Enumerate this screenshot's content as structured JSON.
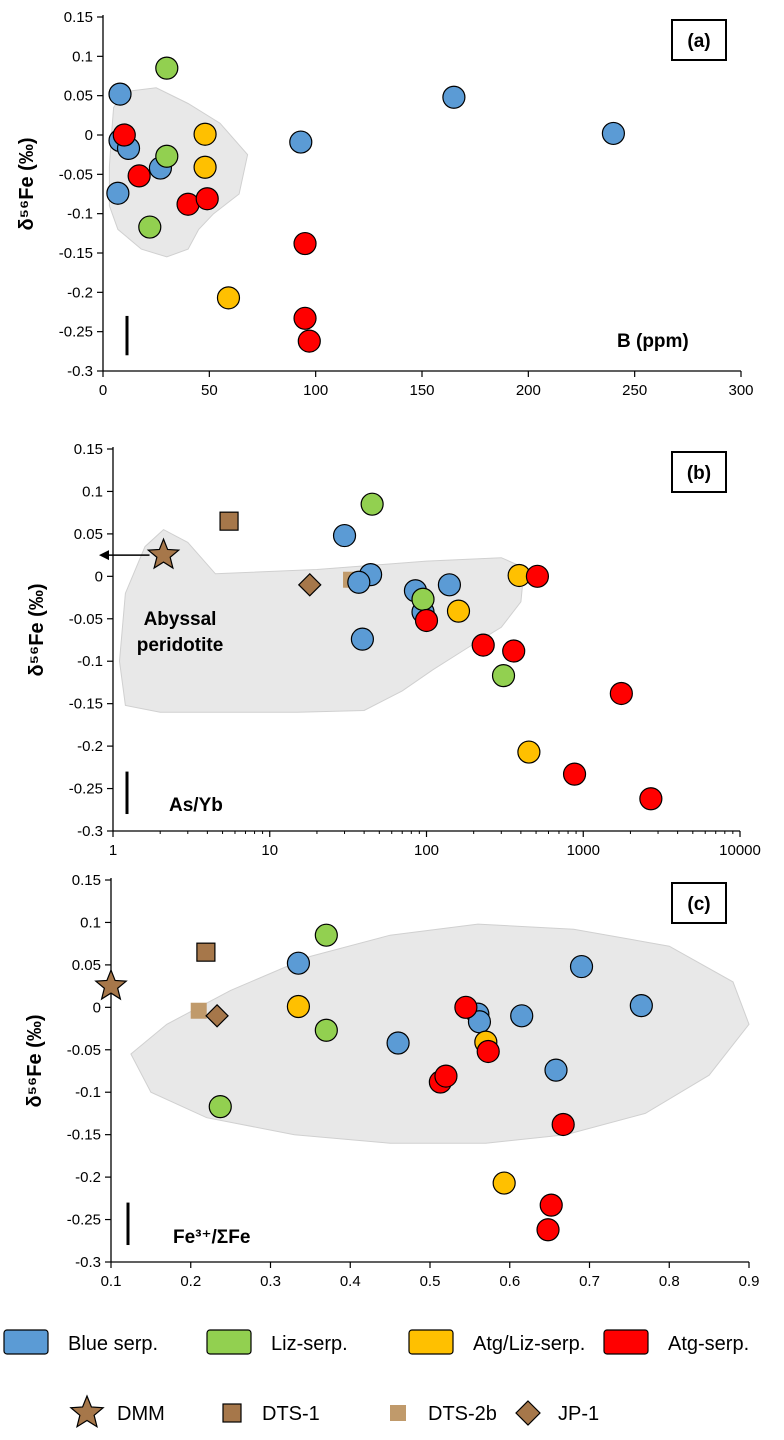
{
  "colors": {
    "blue": "#5b9bd5",
    "green": "#92d050",
    "yellow": "#ffc000",
    "red": "#ff0000",
    "brown": "#a6774a",
    "lightbrown": "#c09a6b",
    "field": "#e8e8e8"
  },
  "legend": {
    "items": [
      {
        "label": "Blue serp.",
        "color": "#5b9bd5",
        "marker": "rect"
      },
      {
        "label": "Liz-serp.",
        "color": "#92d050",
        "marker": "rect"
      },
      {
        "label": "Atg/Liz-serp.",
        "color": "#ffc000",
        "marker": "rect"
      },
      {
        "label": "Atg-serp.",
        "color": "#ff0000",
        "marker": "rect"
      }
    ],
    "refs": [
      {
        "label": "DMM",
        "marker": "star"
      },
      {
        "label": "DTS-1",
        "marker": "square"
      },
      {
        "label": "DTS-2b",
        "marker": "small-square"
      },
      {
        "label": "JP-1",
        "marker": "diamond"
      }
    ]
  },
  "chart_data": [
    {
      "type": "scatter",
      "panel": "(a)",
      "ylabel": "δ⁵⁶Fe (‰)",
      "xlabel": "B (ppm)",
      "xscale": "linear",
      "xlim": [
        0,
        300
      ],
      "ylim": [
        -0.3,
        0.15
      ],
      "xticks": [
        0,
        50,
        100,
        150,
        200,
        250,
        300
      ],
      "yticks": [
        0.15,
        0.1,
        0.05,
        0,
        -0.05,
        -0.1,
        -0.15,
        -0.2,
        -0.25,
        -0.3
      ],
      "xtick_labels": [
        "0",
        "50",
        "100",
        "150",
        "200",
        "250",
        "300"
      ],
      "ytick_labels": [
        "0.15",
        "0.1",
        "0.05",
        "0",
        "-0.05",
        "-0.1",
        "-0.15",
        "-0.2",
        "-0.25",
        "-0.3"
      ],
      "field": {
        "label": "",
        "outline": [
          [
            5,
            0.035
          ],
          [
            10,
            0.055
          ],
          [
            25,
            0.06
          ],
          [
            40,
            0.04
          ],
          [
            55,
            0.015
          ],
          [
            68,
            -0.025
          ],
          [
            64,
            -0.075
          ],
          [
            52,
            -0.1
          ],
          [
            45,
            -0.12
          ],
          [
            40,
            -0.145
          ],
          [
            30,
            -0.155
          ],
          [
            18,
            -0.145
          ],
          [
            7,
            -0.12
          ],
          [
            3,
            -0.09
          ],
          [
            3,
            -0.04
          ],
          [
            4,
            0.0
          ]
        ]
      },
      "series": [
        {
          "group": "blue",
          "points": [
            [
              8,
              0.052
            ],
            [
              8,
              -0.007
            ],
            [
              12,
              -0.017
            ],
            [
              7,
              -0.074
            ],
            [
              27,
              -0.042
            ],
            [
              93,
              -0.009
            ],
            [
              165,
              0.048
            ],
            [
              240,
              0.002
            ]
          ]
        },
        {
          "group": "green",
          "points": [
            [
              30,
              0.085
            ],
            [
              30,
              -0.027
            ],
            [
              22,
              -0.117
            ]
          ]
        },
        {
          "group": "yellow",
          "points": [
            [
              48,
              0.001
            ],
            [
              48,
              -0.041
            ],
            [
              59,
              -0.207
            ]
          ]
        },
        {
          "group": "red",
          "points": [
            [
              10,
              0.0
            ],
            [
              17,
              -0.052
            ],
            [
              40,
              -0.088
            ],
            [
              49,
              -0.081
            ],
            [
              95,
              -0.138
            ],
            [
              95,
              -0.233
            ],
            [
              97,
              -0.262
            ]
          ]
        }
      ],
      "refs": [],
      "error_bar_length": 0.05
    },
    {
      "type": "scatter",
      "panel": "(b)",
      "ylabel": "δ⁵⁶Fe (‰)",
      "xlabel": "As/Yb",
      "xscale": "log",
      "xlim": [
        1,
        10000
      ],
      "ylim": [
        -0.3,
        0.15
      ],
      "xticks": [
        1,
        10,
        100,
        1000,
        10000
      ],
      "yticks": [
        0.15,
        0.1,
        0.05,
        0,
        -0.05,
        -0.1,
        -0.15,
        -0.2,
        -0.25,
        -0.3
      ],
      "xtick_labels": [
        "1",
        "10",
        "100",
        "1000",
        "10000"
      ],
      "ytick_labels": [
        "0.15",
        "0.1",
        "0.05",
        "0",
        "-0.05",
        "-0.1",
        "-0.15",
        "-0.2",
        "-0.25",
        "-0.3"
      ],
      "field": {
        "label": "Abyssal peridotite",
        "outline": [
          [
            1.2,
            -0.02
          ],
          [
            1.6,
            0.035
          ],
          [
            2.1,
            0.055
          ],
          [
            3,
            0.04
          ],
          [
            4.5,
            0.003
          ],
          [
            20,
            0.008
          ],
          [
            100,
            0.018
          ],
          [
            300,
            0.022
          ],
          [
            420,
            0.01
          ],
          [
            400,
            -0.03
          ],
          [
            300,
            -0.06
          ],
          [
            180,
            -0.085
          ],
          [
            110,
            -0.11
          ],
          [
            70,
            -0.135
          ],
          [
            40,
            -0.158
          ],
          [
            15,
            -0.16
          ],
          [
            5,
            -0.16
          ],
          [
            2,
            -0.16
          ],
          [
            1.2,
            -0.152
          ],
          [
            1.1,
            -0.1
          ]
        ]
      },
      "series": [
        {
          "group": "blue",
          "points": [
            [
              30,
              0.048
            ],
            [
              44,
              0.002
            ],
            [
              37,
              -0.007
            ],
            [
              85,
              -0.017
            ],
            [
              140,
              -0.01
            ],
            [
              95,
              -0.042
            ],
            [
              39,
              -0.074
            ]
          ]
        },
        {
          "group": "green",
          "points": [
            [
              45,
              0.085
            ],
            [
              95,
              -0.027
            ],
            [
              310,
              -0.117
            ]
          ]
        },
        {
          "group": "yellow",
          "points": [
            [
              390,
              0.001
            ],
            [
              160,
              -0.041
            ],
            [
              450,
              -0.207
            ]
          ]
        },
        {
          "group": "red",
          "points": [
            [
              510,
              0.0
            ],
            [
              100,
              -0.052
            ],
            [
              230,
              -0.081
            ],
            [
              360,
              -0.088
            ],
            [
              1750,
              -0.138
            ],
            [
              880,
              -0.233
            ],
            [
              2700,
              -0.262
            ]
          ]
        }
      ],
      "refs": [
        {
          "name": "DMM",
          "marker": "star",
          "point": [
            2.1,
            0.025
          ]
        },
        {
          "name": "DTS-1",
          "marker": "square",
          "point": [
            5.5,
            0.065
          ]
        },
        {
          "name": "DTS-2b",
          "marker": "small-square",
          "point": [
            33,
            -0.004
          ]
        },
        {
          "name": "JP-1",
          "marker": "diamond",
          "point": [
            18,
            -0.01
          ]
        }
      ],
      "arrow": {
        "from": [
          2.1,
          0.025
        ],
        "to": [
          1.05,
          0.025
        ]
      },
      "error_bar_length": 0.05
    },
    {
      "type": "scatter",
      "panel": "(c)",
      "ylabel": "δ⁵⁶Fe (‰)",
      "xlabel": "Fe³⁺/ΣFe",
      "xscale": "linear",
      "xlim": [
        0.1,
        0.9
      ],
      "ylim": [
        -0.3,
        0.15
      ],
      "xticks": [
        0.1,
        0.2,
        0.3,
        0.4,
        0.5,
        0.6,
        0.7,
        0.8,
        0.9
      ],
      "yticks": [
        0.15,
        0.1,
        0.05,
        0,
        -0.05,
        -0.1,
        -0.15,
        -0.2,
        -0.25,
        -0.3
      ],
      "xtick_labels": [
        "0.1",
        "0.2",
        "0.3",
        "0.4",
        "0.5",
        "0.6",
        "0.7",
        "0.8",
        "0.9"
      ],
      "ytick_labels": [
        "0.15",
        "0.1",
        "0.05",
        "0",
        "-0.05",
        "-0.1",
        "-0.15",
        "-0.2",
        "-0.25",
        "-0.3"
      ],
      "field": {
        "label": "",
        "outline": [
          [
            0.125,
            -0.055
          ],
          [
            0.17,
            -0.02
          ],
          [
            0.25,
            0.02
          ],
          [
            0.35,
            0.06
          ],
          [
            0.45,
            0.085
          ],
          [
            0.56,
            0.098
          ],
          [
            0.68,
            0.092
          ],
          [
            0.8,
            0.072
          ],
          [
            0.88,
            0.03
          ],
          [
            0.9,
            -0.02
          ],
          [
            0.85,
            -0.08
          ],
          [
            0.77,
            -0.125
          ],
          [
            0.67,
            -0.15
          ],
          [
            0.57,
            -0.16
          ],
          [
            0.45,
            -0.16
          ],
          [
            0.33,
            -0.15
          ],
          [
            0.22,
            -0.13
          ],
          [
            0.15,
            -0.1
          ]
        ]
      },
      "series": [
        {
          "group": "blue",
          "points": [
            [
              0.335,
              0.052
            ],
            [
              0.46,
              -0.042
            ],
            [
              0.56,
              -0.008
            ],
            [
              0.562,
              -0.017
            ],
            [
              0.615,
              -0.01
            ],
            [
              0.69,
              0.048
            ],
            [
              0.765,
              0.002
            ],
            [
              0.658,
              -0.074
            ]
          ]
        },
        {
          "group": "green",
          "points": [
            [
              0.37,
              0.085
            ],
            [
              0.37,
              -0.027
            ],
            [
              0.237,
              -0.117
            ]
          ]
        },
        {
          "group": "yellow",
          "points": [
            [
              0.335,
              0.001
            ],
            [
              0.57,
              -0.041
            ],
            [
              0.593,
              -0.207
            ]
          ]
        },
        {
          "group": "red",
          "points": [
            [
              0.545,
              0.0
            ],
            [
              0.573,
              -0.052
            ],
            [
              0.513,
              -0.088
            ],
            [
              0.52,
              -0.081
            ],
            [
              0.667,
              -0.138
            ],
            [
              0.652,
              -0.233
            ],
            [
              0.648,
              -0.262
            ]
          ]
        }
      ],
      "refs": [
        {
          "name": "DMM",
          "marker": "star",
          "point": [
            0.1,
            0.025
          ]
        },
        {
          "name": "DTS-1",
          "marker": "square",
          "point": [
            0.219,
            0.065
          ]
        },
        {
          "name": "DTS-2b",
          "marker": "small-square",
          "point": [
            0.21,
            -0.004
          ]
        },
        {
          "name": "JP-1",
          "marker": "diamond",
          "point": [
            0.233,
            -0.01
          ]
        }
      ],
      "error_bar_length": 0.05
    }
  ]
}
